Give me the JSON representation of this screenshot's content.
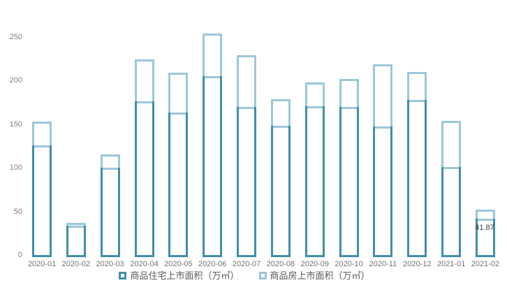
{
  "chart_data": {
    "type": "bar",
    "subtype": "overlapped-hollow-columns",
    "title": "",
    "xlabel": "",
    "ylabel": "",
    "categories": [
      "2020-01",
      "2020-02",
      "2020-03",
      "2020-04",
      "2020-05",
      "2020-06",
      "2020-07",
      "2020-08",
      "2020-09",
      "2020-10",
      "2020-11",
      "2020-12",
      "2021-01",
      "2021-02"
    ],
    "series": [
      {
        "name": "商品住宅上市面积（万㎡）",
        "color": "#3f8fa8",
        "values": [
          126,
          34,
          100,
          176,
          163,
          205,
          170,
          148,
          171,
          170,
          147,
          178,
          101,
          41.87
        ]
      },
      {
        "name": "商品房上市面积（万㎡）",
        "color": "#9cc7da",
        "values": [
          153,
          37,
          115,
          224,
          209,
          254,
          229,
          179,
          198,
          202,
          219,
          210,
          154,
          52
        ]
      }
    ],
    "y_ticks": [
      0,
      50,
      100,
      150,
      200,
      250
    ],
    "ylim": [
      0,
      260
    ],
    "grid": false,
    "legend_position": "bottom",
    "annotation": {
      "text": "41.87",
      "category": "2021-02",
      "series": "商品住宅上市面积（万㎡）"
    }
  },
  "legend": {
    "residential_label": "商品住宅上市面积（万㎡）",
    "commodity_label": "商品房上市面积（万㎡）"
  },
  "annotation_text": "41.87",
  "colors": {
    "residential_series": "#3f8fa8",
    "commodity_series": "#9cc7da",
    "axis_text": "#808080",
    "background": "#ffffff"
  }
}
